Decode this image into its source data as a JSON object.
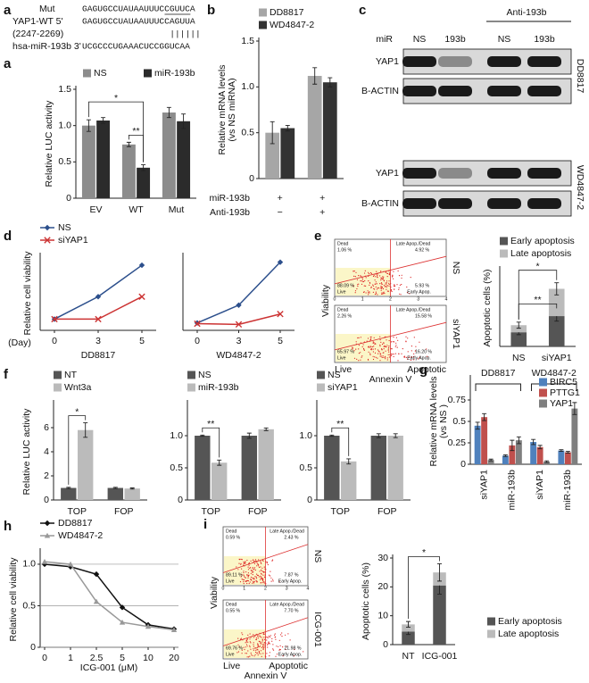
{
  "sequences": {
    "label": "a",
    "rows": [
      {
        "name": "Mut",
        "seq": "GAGUGCCUAUAAUUUCCGUUCA"
      },
      {
        "name": "YAP1-WT 5'",
        "seq": "GAGUGCCUAUAAUUUCCAGUUA"
      },
      {
        "name": "(2247-2269)",
        "seq": "||||||"
      },
      {
        "name": "hsa-miR-193b 3'",
        "seq": "UCGCCCUGAAACUCCGGUCAA"
      }
    ]
  },
  "western": {
    "label": "c",
    "treatment": "Anti-193b",
    "row_label": "miR",
    "lanes": [
      "NS",
      "193b",
      "NS",
      "193b"
    ],
    "blocks": [
      {
        "cell_line": "DD8817",
        "bands": [
          "YAP1",
          "B-ACTIN"
        ]
      },
      {
        "cell_line": "WD4847-2",
        "bands": [
          "YAP1",
          "B-ACTIN"
        ]
      }
    ]
  },
  "flow": [
    {
      "label": "e",
      "ylabel": "Viability",
      "xlabel": "Annexin V",
      "x_ends": [
        "Live",
        "Apoptotic"
      ],
      "ticks": [
        "0",
        "1",
        "2",
        "3",
        "4"
      ],
      "quadrants": [
        "Dead",
        "Late Apop./Dead",
        "Live",
        "Early Apop."
      ],
      "plots": [
        {
          "condition": "NS",
          "percentages": [
            "1.06 %",
            "4.92 %",
            "88.09 %",
            "5.93 %"
          ]
        },
        {
          "condition": "siYAP1",
          "percentages": [
            "2.26 %",
            "15.58 %",
            "65.97 %",
            "16.20 %"
          ]
        }
      ]
    },
    {
      "label": "i",
      "ylabel": "Viability",
      "xlabel": "Annexin V",
      "x_ends": [
        "Live",
        "Apoptotic"
      ],
      "ticks": [
        "0",
        "1",
        "2",
        "3",
        "4"
      ],
      "quadrants": [
        "Dead",
        "Late Apop./Dead",
        "Live",
        "Early Apop."
      ],
      "plots": [
        {
          "condition": "NS",
          "percentages": [
            "0.59 %",
            "2.43 %",
            "89.11 %",
            "7.87 %"
          ]
        },
        {
          "condition": "ICG-001",
          "percentages": [
            "0.55 %",
            "7.70 %",
            "69.76 %",
            "21.98 %"
          ]
        }
      ]
    }
  ],
  "chart_data": [
    {
      "type": "bar",
      "label": "a",
      "ylabel": "Relative LUC activity",
      "categories": [
        "EV",
        "WT",
        "Mut"
      ],
      "series": [
        {
          "name": "NS",
          "color": "#8c8c8c",
          "values": [
            1.0,
            0.74,
            1.18
          ],
          "errors": [
            0.08,
            0.03,
            0.07
          ]
        },
        {
          "name": "miR-193b",
          "color": "#2b2b2b",
          "values": [
            1.07,
            0.42,
            1.06
          ],
          "errors": [
            0.04,
            0.04,
            0.1
          ]
        }
      ],
      "ylim": [
        0,
        1.5
      ],
      "yticks": [
        0,
        0.5,
        {
          "value": 1,
          "label": "1.0"
        },
        1.5
      ],
      "legend": "top",
      "annotations": [
        "*",
        "**"
      ]
    },
    {
      "type": "bar",
      "label": "b",
      "ylabel": [
        "Relative mRNA levels",
        "(vs NS miRNA)"
      ],
      "categories": [
        null,
        null
      ],
      "series": [
        {
          "name": "DD8817",
          "color": "#a6a6a6",
          "values": [
            0.5,
            1.12
          ],
          "errors": [
            0.12,
            0.09
          ]
        },
        {
          "name": "WD4847-2",
          "color": "#333333",
          "values": [
            0.55,
            1.05
          ],
          "errors": [
            0.03,
            0.05
          ]
        }
      ],
      "ylim": [
        0,
        1.5
      ],
      "yticks": [
        0,
        0.5,
        {
          "value": 1,
          "label": "1.0"
        },
        1.5
      ],
      "legend": "above",
      "table": [
        [
          "miR-193b",
          "+",
          "+"
        ],
        [
          "Anti-193b",
          "−",
          "+"
        ]
      ]
    },
    {
      "type": "line",
      "label": "d",
      "title": "DD8817",
      "ylabel": "Relative cell viability",
      "xlabel": "(Day)",
      "categories": [
        "0",
        "3",
        "5"
      ],
      "series": [
        {
          "name": "NS",
          "color": "#2c4f8c",
          "marker": "diamond",
          "values": [
            1.0,
            2.0,
            3.4
          ]
        },
        {
          "name": "siYAP1",
          "color": "#cc3333",
          "marker": "x",
          "values": [
            1.0,
            1.0,
            2.0
          ]
        }
      ],
      "ylim": [
        0.5,
        3.8
      ],
      "legend": "above"
    },
    {
      "type": "line",
      "title": "WD4847-2",
      "categories": [
        "0",
        "3",
        "5"
      ],
      "series": [
        {
          "color": "#2c4f8c",
          "marker": "diamond",
          "values": [
            1.0,
            2.2,
            5.1
          ]
        },
        {
          "color": "#cc3333",
          "marker": "x",
          "values": [
            0.95,
            0.9,
            1.6
          ]
        }
      ],
      "ylim": [
        0.5,
        5.5
      ]
    },
    {
      "type": "bar",
      "stacked": true,
      "ylabel": "Apoptotic cells (%)",
      "categories": [
        "NS",
        "siYAP1"
      ],
      "series": [
        {
          "name": "Early apoptosis",
          "color": "#555555",
          "values": [
            7,
            15
          ],
          "errors": [
            1.2,
            2.5
          ]
        },
        {
          "name": "Late apoptosis",
          "color": "#bbbbbb",
          "values": [
            3.5,
            13.5
          ],
          "errors": [
            1.5,
            3
          ]
        }
      ],
      "ylim": [
        0,
        38
      ],
      "legend": "above",
      "annotations": [
        "*",
        "**"
      ]
    },
    {
      "type": "bar",
      "label": "f",
      "ylabel": "Relative LUC activity",
      "categories": [
        "TOP",
        "FOP"
      ],
      "series": [
        {
          "name": "NT",
          "color": "#555555",
          "values": [
            1.0,
            1.0
          ],
          "errors": [
            0.05,
            0.05
          ]
        },
        {
          "name": "Wnt3a",
          "color": "#bbbbbb",
          "values": [
            5.8,
            0.95
          ],
          "errors": [
            0.6,
            0.05
          ]
        }
      ],
      "ylim": [
        0,
        8
      ],
      "yticks": [
        0,
        2,
        4,
        6
      ],
      "legend": "above",
      "annotations": [
        "*"
      ]
    },
    {
      "type": "bar",
      "categories": [
        "TOP",
        "FOP"
      ],
      "series": [
        {
          "name": "NS",
          "color": "#555555",
          "values": [
            1.0,
            1.0
          ],
          "errors": [
            0.01,
            0.04
          ]
        },
        {
          "name": "miR-193b",
          "color": "#bbbbbb",
          "values": [
            0.58,
            1.1
          ],
          "errors": [
            0.04,
            0.02
          ]
        }
      ],
      "ylim": [
        0,
        1.5
      ],
      "yticks": [
        0,
        0.5,
        {
          "value": 1,
          "label": "1.0"
        }
      ],
      "legend": "above",
      "annotations": [
        "**"
      ]
    },
    {
      "type": "bar",
      "categories": [
        "TOP",
        "FOP"
      ],
      "series": [
        {
          "name": "NS",
          "color": "#555555",
          "values": [
            1.0,
            1.0
          ],
          "errors": [
            0.01,
            0.03
          ]
        },
        {
          "name": "siYAP1",
          "color": "#bbbbbb",
          "values": [
            0.6,
            1.0
          ],
          "errors": [
            0.04,
            0.03
          ]
        }
      ],
      "ylim": [
        0,
        1.5
      ],
      "yticks": [
        0,
        0.5,
        {
          "value": 1,
          "label": "1.0"
        }
      ],
      "legend": "above",
      "annotations": [
        "**"
      ]
    },
    {
      "type": "bar",
      "label": "g",
      "ylabel": [
        "Relative mRNA levels",
        "(vs NS )"
      ],
      "categories": [
        "siYAP1",
        "miR-193b",
        "siYAP1",
        "miR-193b"
      ],
      "group_labels": [
        "DD8817",
        "WD4847-2"
      ],
      "series": [
        {
          "name": "BIRC5",
          "color": "#4f81bd",
          "values": [
            0.45,
            0.1,
            0.26,
            0.16
          ],
          "errors": [
            0.04,
            0.01,
            0.03,
            0.01
          ]
        },
        {
          "name": "PTTG1",
          "color": "#c0504d",
          "values": [
            0.55,
            0.22,
            0.2,
            0.14
          ],
          "errors": [
            0.04,
            0.06,
            0.02,
            0.01
          ]
        },
        {
          "name": "YAP1",
          "color": "#7f7f7f",
          "values": [
            0.05,
            0.28,
            0.03,
            0.65
          ],
          "errors": [
            0.01,
            0.04,
            0.01,
            0.07
          ]
        }
      ],
      "ylim": [
        0,
        1
      ],
      "yticks": [
        0,
        0.25,
        0.5,
        0.75
      ],
      "legend": "right"
    },
    {
      "type": "line",
      "label": "h",
      "ylabel": "Relative cell viability",
      "xlabel": "ICG-001 (μM)",
      "categories": [
        "0",
        "1",
        "2.5",
        "5",
        "10",
        "20"
      ],
      "series": [
        {
          "name": "DD8817",
          "color": "#111111",
          "marker": "diamond",
          "values": [
            1.0,
            0.97,
            0.88,
            0.48,
            0.27,
            0.22
          ]
        },
        {
          "name": "WD4847-2",
          "color": "#999999",
          "marker": "triangle",
          "values": [
            1.03,
            1.0,
            0.55,
            0.3,
            0.25,
            0.21
          ]
        }
      ],
      "ylim": [
        0,
        1.15
      ],
      "yticks": [
        0,
        0.5,
        {
          "value": 1,
          "label": "1.0"
        }
      ],
      "grid": true,
      "legend": "above"
    },
    {
      "type": "bar",
      "stacked": true,
      "ylabel": "Apoptotic cells (%)",
      "categories": [
        "NT",
        "ICG-001"
      ],
      "series": [
        {
          "name": "Early apoptosis",
          "color": "#555555",
          "values": [
            4.5,
            20.5
          ],
          "errors": [
            1,
            3
          ]
        },
        {
          "name": "Late apoptosis",
          "color": "#bbbbbb",
          "values": [
            2.5,
            4.5
          ],
          "errors": [
            1,
            3
          ]
        }
      ],
      "ylim": [
        0,
        30
      ],
      "yticks": [
        0,
        10,
        20,
        30
      ],
      "legend": "below-right",
      "annotations": [
        "*"
      ]
    }
  ]
}
